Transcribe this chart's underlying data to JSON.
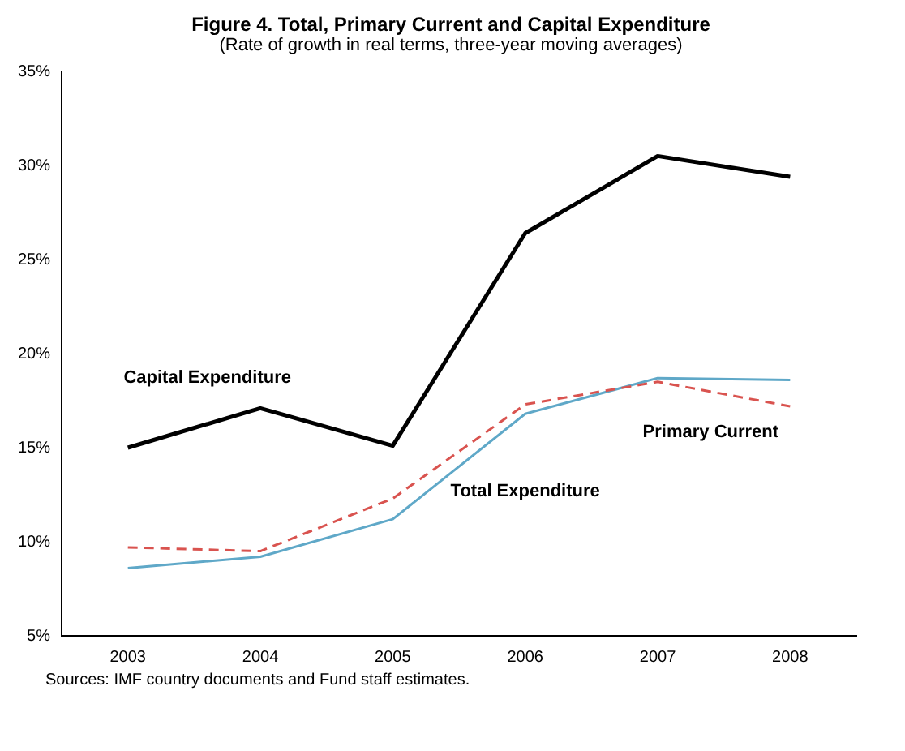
{
  "chart_data": {
    "type": "line",
    "title": "Figure 4. Total, Primary Current and Capital Expenditure",
    "subtitle": "(Rate of growth in real terms, three-year moving averages)",
    "categories": [
      "2003",
      "2004",
      "2005",
      "2006",
      "2007",
      "2008"
    ],
    "series": [
      {
        "name": "Capital Expenditure",
        "color": "#000000",
        "values": [
          15.0,
          17.1,
          15.1,
          26.4,
          30.5,
          29.4
        ],
        "line_style": "solid"
      },
      {
        "name": "Primary Current",
        "color": "#d9534f",
        "values": [
          9.7,
          9.5,
          12.3,
          17.3,
          18.5,
          17.2
        ],
        "line_style": "dashed"
      },
      {
        "name": "Total Expenditure",
        "color": "#5fa8c8",
        "values": [
          8.6,
          9.2,
          11.2,
          16.8,
          18.7,
          18.6
        ],
        "line_style": "solid"
      }
    ],
    "ylim": [
      5,
      35
    ],
    "yticks": [
      {
        "value": 5,
        "label": "5%"
      },
      {
        "value": 10,
        "label": "10%"
      },
      {
        "value": 15,
        "label": "15%"
      },
      {
        "value": 20,
        "label": "20%"
      },
      {
        "value": 25,
        "label": "25%"
      },
      {
        "value": 30,
        "label": "30%"
      },
      {
        "value": 35,
        "label": "35%"
      }
    ],
    "grid": false,
    "legend": false,
    "marker": "none",
    "annotations": [
      "Sources: IMF country documents and Fund staff estimates."
    ]
  }
}
